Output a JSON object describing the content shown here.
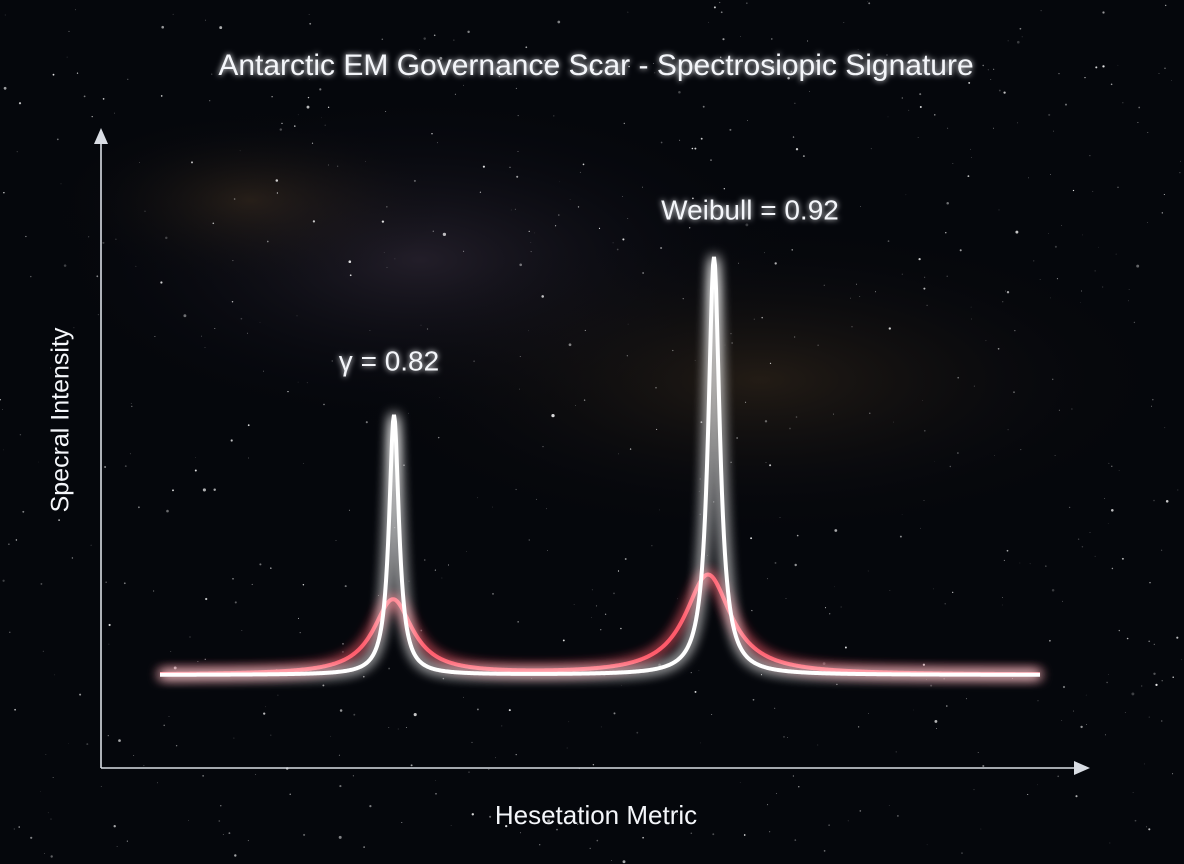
{
  "chart_data": {
    "title": "Antarctic EM Governance Scar - Spectrosiopic Signature",
    "x_label": "Hesetation Metric",
    "y_label": "Specral Intensity",
    "annotations": [
      "γ = 0.82",
      "Weibull = 0.92"
    ]
  }
}
